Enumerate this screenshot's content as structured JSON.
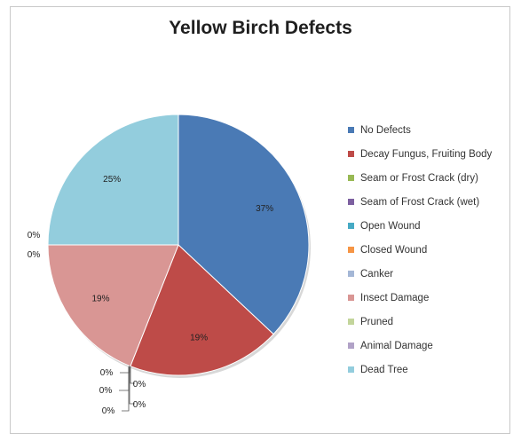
{
  "chart_data": {
    "type": "pie",
    "title": "Yellow Birch Defects",
    "legend_position": "right",
    "slices": [
      {
        "label": "No Defects",
        "value": 37,
        "display": "37%",
        "color": "#4a7ab5"
      },
      {
        "label": "Decay Fungus, Fruiting Body",
        "value": 19,
        "display": "19%",
        "color": "#be4b48"
      },
      {
        "label": "Seam or Frost Crack (dry)",
        "value": 0,
        "display": "0%",
        "color": "#98b954"
      },
      {
        "label": "Seam of Frost Crack (wet)",
        "value": 0,
        "display": "0%",
        "color": "#7d60a0"
      },
      {
        "label": "Open Wound",
        "value": 0,
        "display": "0%",
        "color": "#46aac4"
      },
      {
        "label": "Closed Wound",
        "value": 0,
        "display": "0%",
        "color": "#f69545"
      },
      {
        "label": "Canker",
        "value": 0,
        "display": "0%",
        "color": "#a4b7d6"
      },
      {
        "label": "Insect Damage",
        "value": 19,
        "display": "19%",
        "color": "#d99694"
      },
      {
        "label": "Pruned",
        "value": 0,
        "display": "0%",
        "color": "#c3d59b"
      },
      {
        "label": "Animal Damage",
        "value": 0,
        "display": "0%",
        "color": "#b1a2c7"
      },
      {
        "label": "Dead Tree",
        "value": 25,
        "display": "25%",
        "color": "#93cddd"
      }
    ]
  }
}
